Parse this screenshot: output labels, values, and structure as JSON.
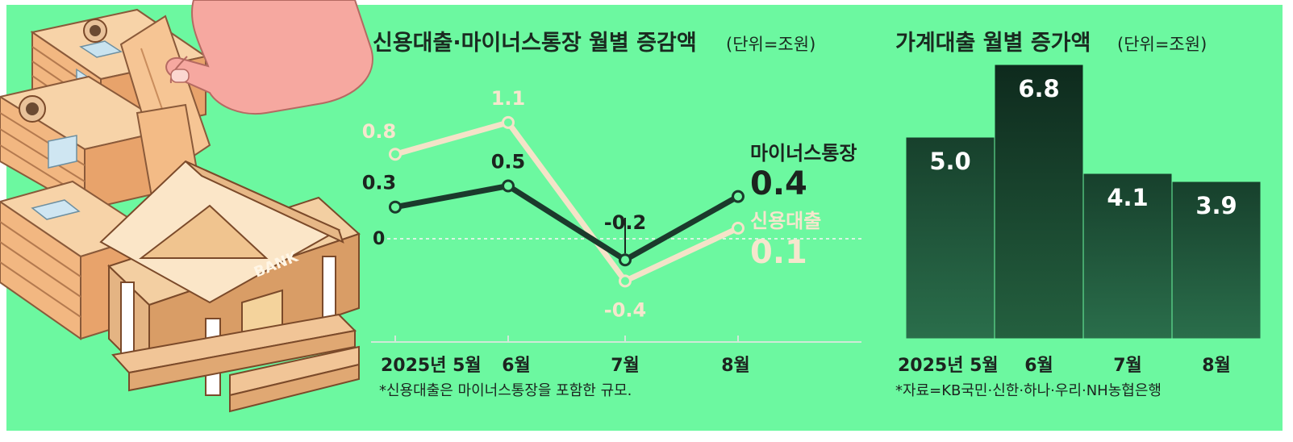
{
  "chart_data": [
    {
      "type": "line",
      "title": "신용대출·마이너스통장 월별 증감액",
      "unit": "(단위=조원)",
      "categories": [
        "2025년 5월",
        "6월",
        "7월",
        "8월"
      ],
      "zero_label": "0",
      "ylim": [
        -0.5,
        1.2
      ],
      "series": [
        {
          "name": "신용대출",
          "values": [
            0.8,
            1.1,
            -0.4,
            0.1
          ],
          "labels": [
            "0.8",
            "1.1",
            "-0.4",
            "0.1"
          ],
          "color": "#f4e3c8"
        },
        {
          "name": "마이너스통장",
          "values": [
            0.3,
            0.5,
            -0.2,
            0.4
          ],
          "labels": [
            "0.3",
            "0.5",
            "-0.2",
            "0.4"
          ],
          "color": "#1b3a2c"
        }
      ],
      "note": "*신용대출은 마이너스통장을 포함한 규모."
    },
    {
      "type": "bar",
      "title": "가계대출 월별 증가액",
      "unit": "(단위=조원)",
      "categories": [
        "2025년 5월",
        "6월",
        "7월",
        "8월"
      ],
      "values": [
        5.0,
        6.8,
        4.1,
        3.9
      ],
      "labels": [
        "5.0",
        "6.8",
        "4.1",
        "3.9"
      ],
      "ylim": [
        0,
        7
      ],
      "colors": {
        "bar": "#1f5a3c",
        "bar_dark": "#123826"
      },
      "note": "*자료=KB국민·신한·하나·우리·NH농협은행"
    }
  ],
  "illustration": {
    "bank_sign": "BANK"
  },
  "colors": {
    "background": "#6cf8a0"
  }
}
